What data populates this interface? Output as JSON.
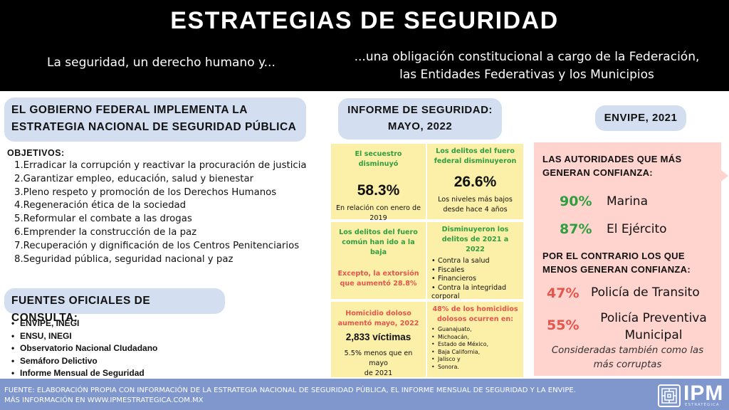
{
  "header": {
    "title": "ESTRATEGIAS DE SEGURIDAD",
    "tag_left": "La seguridad, un derecho humano y...",
    "tag_right_1": "...una obligación constitucional a cargo de la Federación,",
    "tag_right_2": "las Entidades Federativas y los Municipios"
  },
  "gobierno": {
    "title_1": "EL GOBIERNO FEDERAL IMPLEMENTA LA",
    "title_2": "ESTRATEGIA NACIONAL DE SEGURIDAD PÚBLICA",
    "objetivos_label": "OBJETIVOS:",
    "objetivos": [
      "1.Erradicar la corrupción y reactivar la procuración de justicia",
      "2.Garantizar empleo, educación, salud y bienestar",
      "3.Pleno respeto y promoción de los Derechos Humanos",
      "4.Regeneración ética de la sociedad",
      "5.Reformular el combate a las drogas",
      "6.Emprender la construcción de la paz",
      "7.Recuperación y dignificación de los Centros Penitenciarios",
      "8.Seguridad pública, seguridad nacional y paz"
    ]
  },
  "fuentes": {
    "title": "FUENTES OFICIALES DE CONSULTA:",
    "items": [
      "ENVIPE, INEGI",
      "ENSU, INEGI",
      "Observatorio Nacional CIudadano",
      "Semáforo Delictivo",
      "Informe Mensual de Seguridad"
    ]
  },
  "informe": {
    "title_1": "INFORME DE SEGURIDAD:",
    "title_2": "MAYO, 2022",
    "secuestro": {
      "head": "El secuestro disminuyó",
      "value": "58.3%",
      "note_1": "En relación con enero de",
      "note_2": "2019"
    },
    "fuero_federal": {
      "head_1": "Los delitos del fuero",
      "head_2": "federal disminuyeron",
      "value": "26.6%",
      "note_1": "Los niveles más bajos",
      "note_2": "desde hace 4 años"
    },
    "fuero_comun": {
      "head_1": "Los delitos del fuero",
      "head_2": "común han ido a la",
      "head_3": "baja",
      "red_1": "Excepto, la extorsión",
      "red_2": "que aumentó 28.8%"
    },
    "disminuyeron": {
      "head_1": "Disminuyeron  los",
      "head_2": "delitos de 2021 a 2022",
      "items": [
        "Contra la salud",
        "Fiscales",
        "Financieros",
        "Contra la integridad corporal"
      ]
    },
    "homicidio": {
      "head_1": "Homicidio doloso",
      "head_2": "aumentó mayo, 2022",
      "value": "2,833 víctimas",
      "note_1": "5.5% menos que en mayo",
      "note_2": "de 2021"
    },
    "homicidios_estados": {
      "head_1": "48% de los homicidios",
      "head_2": "dolosos ocurren en:",
      "items": [
        "Guanajuato,",
        "Michoacán,",
        "Estado de México,",
        "Baja California,",
        "Jalisco y",
        "Sonora."
      ]
    }
  },
  "envipe": {
    "title": "ENVIPE, 2021",
    "mas_1": "LAS AUTORIDADES QUE MÁS",
    "mas_2": "GENERAN CONFIANZA:",
    "marina_pct": "90%",
    "marina_lbl": "Marina",
    "ejercito_pct": "87%",
    "ejercito_lbl": "El Ejército",
    "menos_1": "POR EL CONTRARIO LOS QUE",
    "menos_2": "MENOS GENERAN CONFIANZA:",
    "transito_pct": "47%",
    "transito_lbl": "Policía de Transito",
    "preventiva_pct": "55%",
    "preventiva_lbl_1": "Policía Preventiva",
    "preventiva_lbl_2": "Municipal",
    "note_1": "Consideradas también como las",
    "note_2": "más corruptas"
  },
  "footer": {
    "line_1": "FUENTE: ELABORACIÓN PROPIA CON INFORMACIÓN DE LA ESTRATEGIA NACIONAL DE SEGURIDAD PÚBLICA, EL INFORME MENSUAL DE SEGURIDAD Y LA ENVIPE.",
    "line_2": "MÁS INFORMACIÓN EN WWW.IPMESTRATEGICA.COM.MX",
    "logo_text": "IPM",
    "logo_sub": "ESTRATÉGICA"
  },
  "colors": {
    "green": "#2f9e3f",
    "red": "#e4564c",
    "yellow_cell": "#fcefa8",
    "pink_box": "#ffd4cf",
    "pill": "#d3dff0",
    "footer": "#7f97cc"
  }
}
